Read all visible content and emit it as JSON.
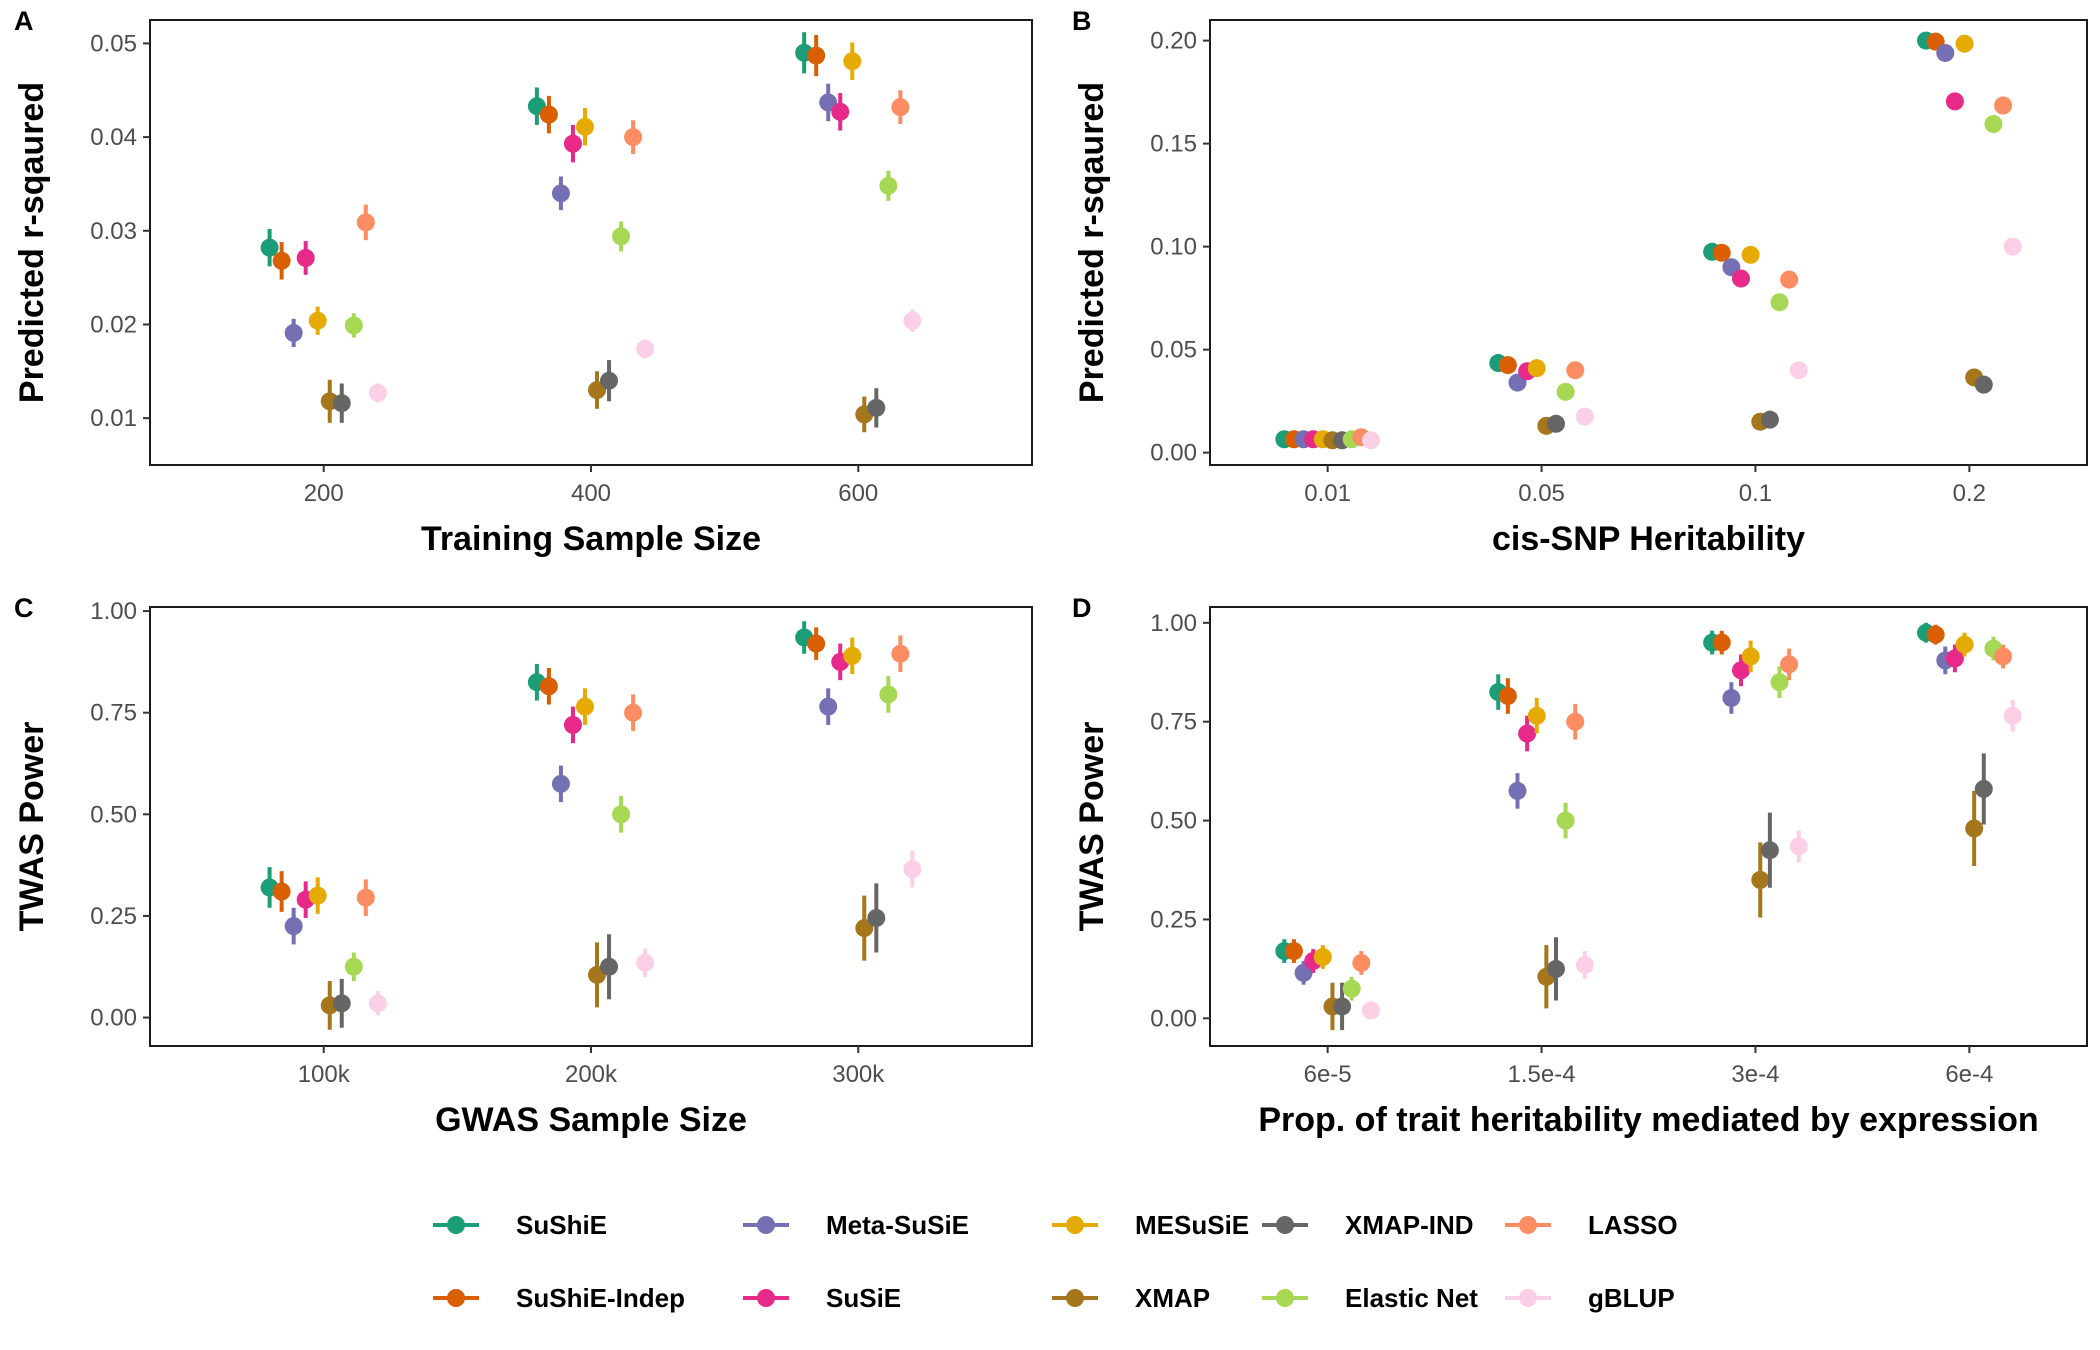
{
  "chart_data": [
    {
      "panel": "A",
      "type": "scatter",
      "xlabel": "Training Sample Size",
      "ylabel": "Predicted r-sqaured",
      "categories": [
        "200",
        "400",
        "600"
      ],
      "ylim": [
        0.005,
        0.0525
      ],
      "yticks": [
        "0.01",
        "0.02",
        "0.03",
        "0.04",
        "0.05"
      ],
      "grid": false,
      "series": [
        {
          "name": "SuShiE",
          "values": [
            0.0282,
            0.0433,
            0.049
          ],
          "lower": [
            0.0262,
            0.0413,
            0.0468
          ],
          "upper": [
            0.0302,
            0.0453,
            0.0512
          ]
        },
        {
          "name": "SuShiE-Indep",
          "values": [
            0.0268,
            0.0424,
            0.0487
          ],
          "lower": [
            0.0248,
            0.0404,
            0.0465
          ],
          "upper": [
            0.0288,
            0.0444,
            0.0509
          ]
        },
        {
          "name": "Meta-SuSiE",
          "values": [
            0.0191,
            0.034,
            0.0437
          ],
          "lower": [
            0.0176,
            0.0322,
            0.0417
          ],
          "upper": [
            0.0206,
            0.0358,
            0.0457
          ]
        },
        {
          "name": "SuSiE",
          "values": [
            0.0271,
            0.0393,
            0.0427
          ],
          "lower": [
            0.0253,
            0.0373,
            0.0407
          ],
          "upper": [
            0.0289,
            0.0413,
            0.0447
          ]
        },
        {
          "name": "MESuSiE",
          "values": [
            0.0204,
            0.0411,
            0.0481
          ],
          "lower": [
            0.0189,
            0.0391,
            0.0461
          ],
          "upper": [
            0.0219,
            0.0431,
            0.0501
          ]
        },
        {
          "name": "XMAP",
          "values": [
            0.0118,
            0.013,
            0.0104
          ],
          "lower": [
            0.0095,
            0.011,
            0.0085
          ],
          "upper": [
            0.0141,
            0.015,
            0.0123
          ]
        },
        {
          "name": "XMAP-IND",
          "values": [
            0.0116,
            0.014,
            0.0111
          ],
          "lower": [
            0.0095,
            0.0118,
            0.009
          ],
          "upper": [
            0.0137,
            0.0162,
            0.0132
          ]
        },
        {
          "name": "Elastic Net",
          "values": [
            0.0199,
            0.0294,
            0.0348
          ],
          "lower": [
            0.0186,
            0.0278,
            0.0332
          ],
          "upper": [
            0.0212,
            0.031,
            0.0364
          ]
        },
        {
          "name": "LASSO",
          "values": [
            0.0309,
            0.04,
            0.0432
          ],
          "lower": [
            0.029,
            0.0382,
            0.0414
          ],
          "upper": [
            0.0328,
            0.0418,
            0.045
          ]
        },
        {
          "name": "gBLUP",
          "values": [
            0.0127,
            0.0174,
            0.0204
          ],
          "lower": [
            0.0117,
            0.0164,
            0.0192
          ],
          "upper": [
            0.0137,
            0.0184,
            0.0216
          ]
        }
      ]
    },
    {
      "panel": "B",
      "type": "scatter",
      "xlabel": "cis-SNP Heritability",
      "ylabel": "Predicted r-sqaured",
      "categories": [
        "0.01",
        "0.05",
        "0.1",
        "0.2"
      ],
      "ylim": [
        -0.006,
        0.21
      ],
      "yticks": [
        "0.00",
        "0.05",
        "0.10",
        "0.15",
        "0.20"
      ],
      "grid": false,
      "series": [
        {
          "name": "SuShiE",
          "values": [
            0.0065,
            0.0435,
            0.0975,
            0.2
          ],
          "lower": [
            0.0065,
            0.0435,
            0.0975,
            0.2
          ],
          "upper": [
            0.0065,
            0.0435,
            0.0975,
            0.2
          ]
        },
        {
          "name": "SuShiE-Indep",
          "values": [
            0.0065,
            0.0425,
            0.097,
            0.1995
          ],
          "lower": [
            0.0065,
            0.0425,
            0.097,
            0.1995
          ],
          "upper": [
            0.0065,
            0.0425,
            0.097,
            0.1995
          ]
        },
        {
          "name": "Meta-SuSiE",
          "values": [
            0.0065,
            0.034,
            0.09,
            0.194
          ],
          "lower": [
            0.0065,
            0.034,
            0.09,
            0.194
          ],
          "upper": [
            0.0065,
            0.034,
            0.09,
            0.194
          ]
        },
        {
          "name": "SuSiE",
          "values": [
            0.0065,
            0.0395,
            0.0845,
            0.1705
          ],
          "lower": [
            0.0065,
            0.0395,
            0.0845,
            0.1705
          ],
          "upper": [
            0.0065,
            0.0395,
            0.0845,
            0.1705
          ]
        },
        {
          "name": "MESuSiE",
          "values": [
            0.0065,
            0.041,
            0.096,
            0.1985
          ],
          "lower": [
            0.0065,
            0.041,
            0.096,
            0.1985
          ],
          "upper": [
            0.0065,
            0.041,
            0.096,
            0.1985
          ]
        },
        {
          "name": "XMAP",
          "values": [
            0.006,
            0.013,
            0.015,
            0.0365
          ],
          "lower": [
            0.006,
            0.013,
            0.015,
            0.0365
          ],
          "upper": [
            0.006,
            0.013,
            0.015,
            0.0365
          ]
        },
        {
          "name": "XMAP-IND",
          "values": [
            0.006,
            0.014,
            0.016,
            0.033
          ],
          "lower": [
            0.006,
            0.014,
            0.016,
            0.033
          ],
          "upper": [
            0.006,
            0.014,
            0.016,
            0.033
          ]
        },
        {
          "name": "Elastic Net",
          "values": [
            0.0065,
            0.0295,
            0.073,
            0.1595
          ],
          "lower": [
            0.0065,
            0.0295,
            0.073,
            0.1595
          ],
          "upper": [
            0.0065,
            0.0295,
            0.073,
            0.1595
          ]
        },
        {
          "name": "LASSO",
          "values": [
            0.0075,
            0.04,
            0.084,
            0.1685
          ],
          "lower": [
            0.0075,
            0.04,
            0.084,
            0.1685
          ],
          "upper": [
            0.0075,
            0.04,
            0.084,
            0.1685
          ]
        },
        {
          "name": "gBLUP",
          "values": [
            0.006,
            0.0175,
            0.04,
            0.1
          ],
          "lower": [
            0.006,
            0.0175,
            0.04,
            0.1
          ],
          "upper": [
            0.006,
            0.0175,
            0.04,
            0.1
          ]
        }
      ]
    },
    {
      "panel": "C",
      "type": "scatter",
      "xlabel": "GWAS Sample Size",
      "ylabel": "TWAS Power",
      "categories": [
        "100k",
        "200k",
        "300k"
      ],
      "ylim": [
        -0.07,
        1.01
      ],
      "yticks": [
        "0.00",
        "0.25",
        "0.50",
        "0.75",
        "1.00"
      ],
      "grid": false,
      "series": [
        {
          "name": "SuShiE",
          "values": [
            0.32,
            0.825,
            0.935
          ],
          "lower": [
            0.27,
            0.78,
            0.895
          ],
          "upper": [
            0.37,
            0.87,
            0.975
          ]
        },
        {
          "name": "SuShiE-Indep",
          "values": [
            0.31,
            0.815,
            0.92
          ],
          "lower": [
            0.26,
            0.77,
            0.88
          ],
          "upper": [
            0.36,
            0.86,
            0.96
          ]
        },
        {
          "name": "Meta-SuSiE",
          "values": [
            0.225,
            0.575,
            0.765
          ],
          "lower": [
            0.18,
            0.53,
            0.72
          ],
          "upper": [
            0.27,
            0.62,
            0.81
          ]
        },
        {
          "name": "SuSiE",
          "values": [
            0.29,
            0.72,
            0.875
          ],
          "lower": [
            0.245,
            0.675,
            0.83
          ],
          "upper": [
            0.335,
            0.765,
            0.92
          ]
        },
        {
          "name": "MESuSiE",
          "values": [
            0.3,
            0.765,
            0.89
          ],
          "lower": [
            0.255,
            0.72,
            0.845
          ],
          "upper": [
            0.345,
            0.81,
            0.935
          ]
        },
        {
          "name": "XMAP",
          "values": [
            0.03,
            0.105,
            0.22
          ],
          "lower": [
            -0.03,
            0.025,
            0.14
          ],
          "upper": [
            0.09,
            0.185,
            0.3
          ]
        },
        {
          "name": "XMAP-IND",
          "values": [
            0.035,
            0.125,
            0.245
          ],
          "lower": [
            -0.025,
            0.045,
            0.16
          ],
          "upper": [
            0.095,
            0.205,
            0.33
          ]
        },
        {
          "name": "Elastic Net",
          "values": [
            0.125,
            0.5,
            0.795
          ],
          "lower": [
            0.09,
            0.455,
            0.75
          ],
          "upper": [
            0.16,
            0.545,
            0.84
          ]
        },
        {
          "name": "LASSO",
          "values": [
            0.295,
            0.75,
            0.895
          ],
          "lower": [
            0.25,
            0.705,
            0.85
          ],
          "upper": [
            0.34,
            0.795,
            0.94
          ]
        },
        {
          "name": "gBLUP",
          "values": [
            0.035,
            0.135,
            0.365
          ],
          "lower": [
            0.005,
            0.1,
            0.32
          ],
          "upper": [
            0.065,
            0.17,
            0.41
          ]
        }
      ]
    },
    {
      "panel": "D",
      "type": "scatter",
      "xlabel": "Prop. of trait heritability mediated by expression",
      "ylabel": "TWAS Power",
      "categories": [
        "6e-5",
        "1.5e-4",
        "3e-4",
        "6e-4"
      ],
      "ylim": [
        -0.07,
        1.04
      ],
      "yticks": [
        "0.00",
        "0.25",
        "0.50",
        "0.75",
        "1.00"
      ],
      "grid": false,
      "series": [
        {
          "name": "SuShiE",
          "values": [
            0.17,
            0.825,
            0.95,
            0.975
          ],
          "lower": [
            0.14,
            0.78,
            0.92,
            0.95
          ],
          "upper": [
            0.2,
            0.87,
            0.98,
            1.0
          ]
        },
        {
          "name": "SuShiE-Indep",
          "values": [
            0.17,
            0.815,
            0.95,
            0.97
          ],
          "lower": [
            0.14,
            0.77,
            0.92,
            0.945
          ],
          "upper": [
            0.2,
            0.86,
            0.98,
            0.995
          ]
        },
        {
          "name": "Meta-SuSiE",
          "values": [
            0.115,
            0.575,
            0.81,
            0.905
          ],
          "lower": [
            0.085,
            0.53,
            0.77,
            0.87
          ],
          "upper": [
            0.145,
            0.62,
            0.85,
            0.94
          ]
        },
        {
          "name": "SuSiE",
          "values": [
            0.145,
            0.72,
            0.88,
            0.91
          ],
          "lower": [
            0.115,
            0.675,
            0.84,
            0.875
          ],
          "upper": [
            0.175,
            0.765,
            0.92,
            0.945
          ]
        },
        {
          "name": "MESuSiE",
          "values": [
            0.155,
            0.765,
            0.915,
            0.945
          ],
          "lower": [
            0.125,
            0.72,
            0.875,
            0.915
          ],
          "upper": [
            0.185,
            0.81,
            0.955,
            0.975
          ]
        },
        {
          "name": "XMAP",
          "values": [
            0.03,
            0.105,
            0.35,
            0.48
          ],
          "lower": [
            -0.03,
            0.025,
            0.255,
            0.385
          ],
          "upper": [
            0.09,
            0.185,
            0.445,
            0.575
          ]
        },
        {
          "name": "XMAP-IND",
          "values": [
            0.03,
            0.125,
            0.425,
            0.58
          ],
          "lower": [
            -0.03,
            0.045,
            0.33,
            0.49
          ],
          "upper": [
            0.09,
            0.205,
            0.52,
            0.67
          ]
        },
        {
          "name": "Elastic Net",
          "values": [
            0.075,
            0.5,
            0.85,
            0.935
          ],
          "lower": [
            0.045,
            0.455,
            0.81,
            0.905
          ],
          "upper": [
            0.105,
            0.545,
            0.89,
            0.965
          ]
        },
        {
          "name": "LASSO",
          "values": [
            0.14,
            0.75,
            0.895,
            0.915
          ],
          "lower": [
            0.11,
            0.705,
            0.855,
            0.885
          ],
          "upper": [
            0.17,
            0.795,
            0.935,
            0.945
          ]
        },
        {
          "name": "gBLUP",
          "values": [
            0.02,
            0.135,
            0.435,
            0.765
          ],
          "lower": [
            0.0,
            0.1,
            0.395,
            0.725
          ],
          "upper": [
            0.04,
            0.17,
            0.475,
            0.805
          ]
        }
      ]
    }
  ],
  "series_colors": {
    "SuShiE": "#1b9e77",
    "SuShiE-Indep": "#d95f02",
    "Meta-SuSiE": "#7570b3",
    "SuSiE": "#e7298a",
    "MESuSiE": "#e6ab02",
    "XMAP": "#a6761d",
    "XMAP-IND": "#666666",
    "Elastic Net": "#a6d854",
    "LASSO": "#fc8d62",
    "gBLUP": "#fbcfe6"
  },
  "legend": {
    "placement": "bottom",
    "rows": [
      [
        "SuShiE",
        "Meta-SuSiE",
        "MESuSiE",
        "XMAP-IND",
        "LASSO"
      ],
      [
        "SuShiE-Indep",
        "SuSiE",
        "XMAP",
        "Elastic Net",
        "gBLUP"
      ]
    ]
  }
}
